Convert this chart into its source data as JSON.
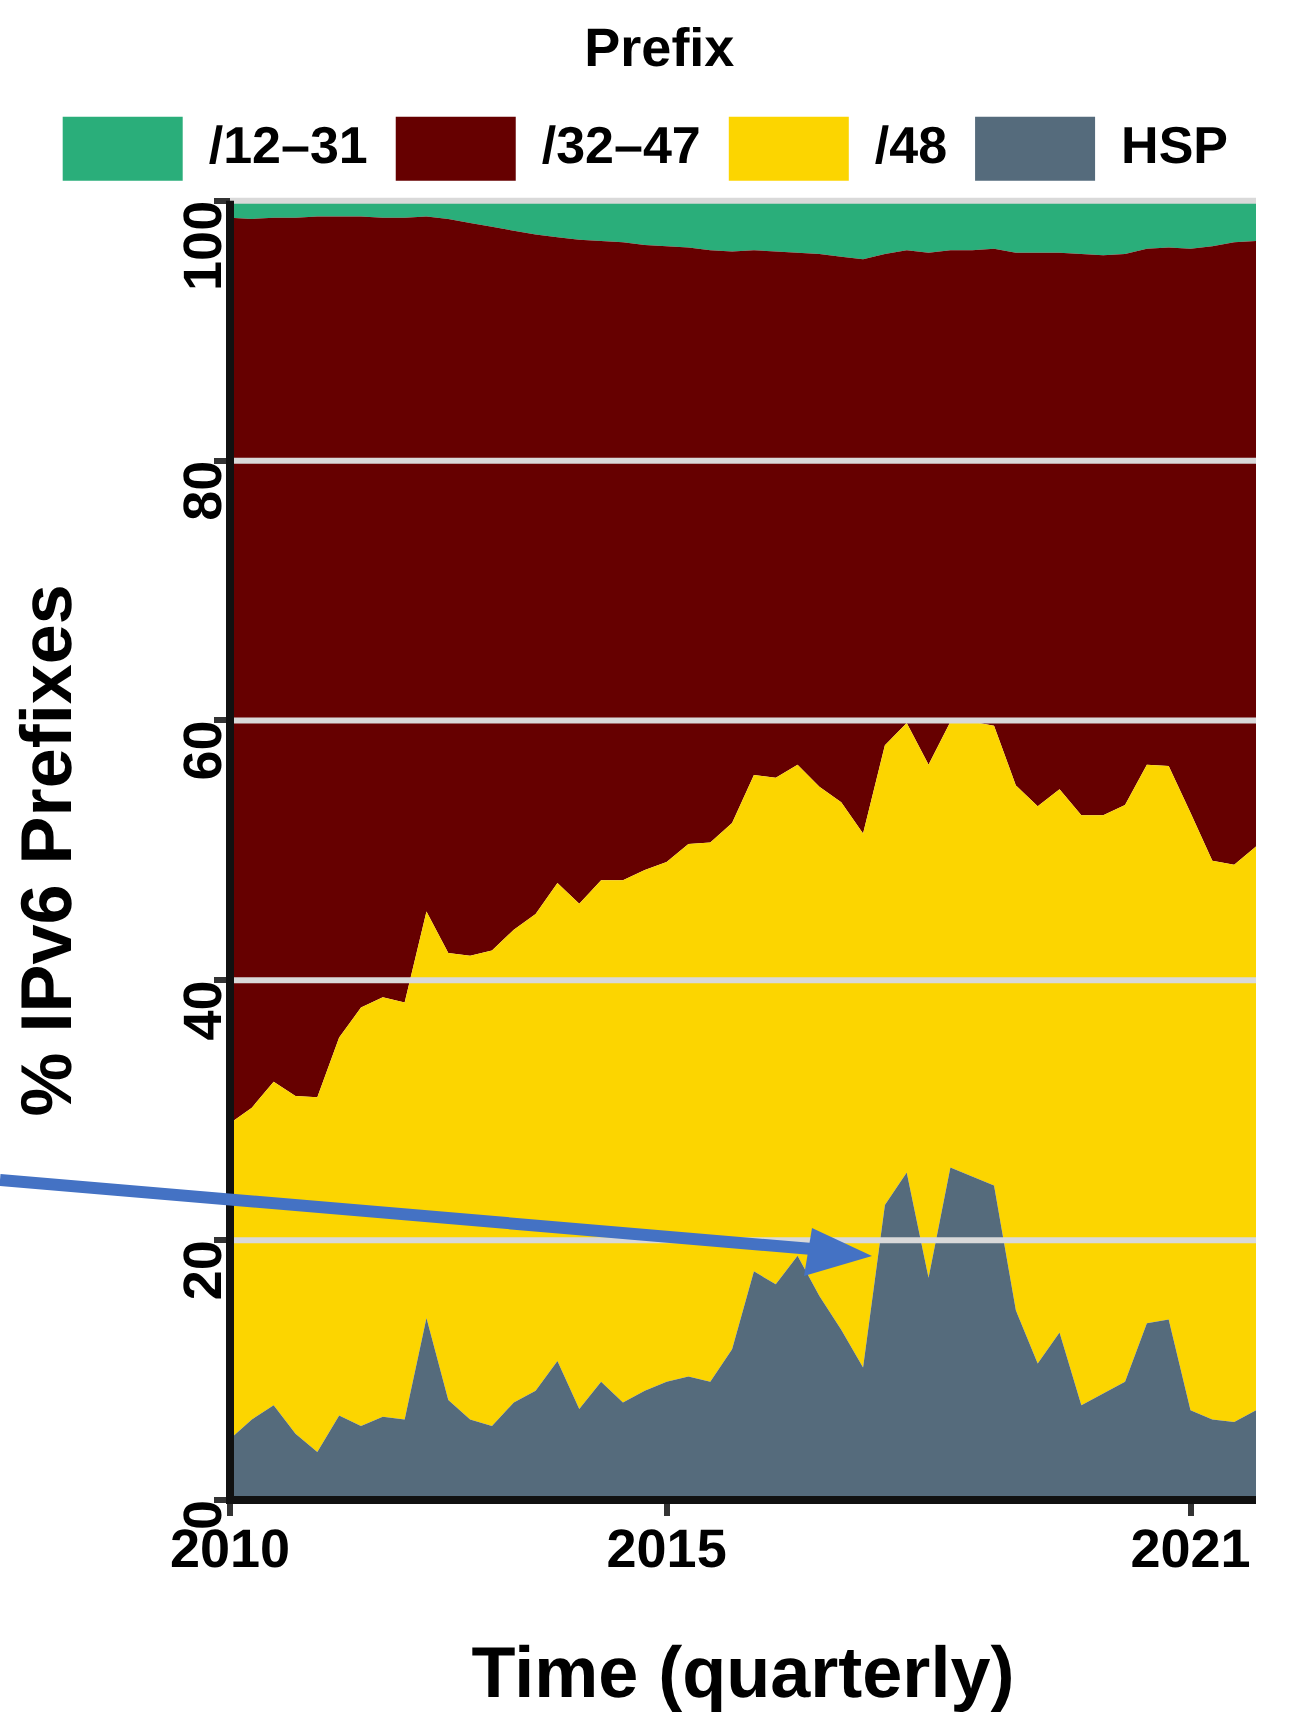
{
  "chart_data": {
    "type": "area",
    "stacked": true,
    "xlabel": "Time (quarterly)",
    "ylabel": "% IPv6 Prefixes",
    "legend_title": "Prefix",
    "legend": "top",
    "x": [
      2010,
      2010.25,
      2010.5,
      2010.75,
      2011,
      2011.25,
      2011.5,
      2011.75,
      2012,
      2012.25,
      2012.5,
      2012.75,
      2013,
      2013.25,
      2013.5,
      2013.75,
      2014,
      2014.25,
      2014.5,
      2014.75,
      2015,
      2015.25,
      2015.5,
      2015.75,
      2016,
      2016.25,
      2016.5,
      2016.75,
      2017,
      2017.25,
      2017.5,
      2017.75,
      2018,
      2018.25,
      2018.5,
      2018.75,
      2019,
      2019.25,
      2019.5,
      2019.75,
      2020,
      2020.25,
      2020.5,
      2020.75,
      2021,
      2021.25,
      2021.5,
      2021.75
    ],
    "series": [
      {
        "name": "HSP",
        "color": "#556b7c",
        "values": [
          4.7,
          6.2,
          7.3,
          5.1,
          3.7,
          6.5,
          5.7,
          6.4,
          6.2,
          14.0,
          7.7,
          6.2,
          5.7,
          7.5,
          8.4,
          10.7,
          7.0,
          9.1,
          7.5,
          8.4,
          9.1,
          9.5,
          9.1,
          11.6,
          17.6,
          16.6,
          18.8,
          15.7,
          13.1,
          10.2,
          22.7,
          25.2,
          17.1,
          25.6,
          24.9,
          24.2,
          14.6,
          10.5,
          12.9,
          7.3,
          8.2,
          9.1,
          13.6,
          13.9,
          6.9,
          6.2,
          6.0,
          6.9
        ]
      },
      {
        "name": "/48",
        "color": "#fcd500",
        "values": [
          24.3,
          24.0,
          24.9,
          26.0,
          27.3,
          29.1,
          32.2,
          32.3,
          32.1,
          31.3,
          34.4,
          35.7,
          36.6,
          36.4,
          36.7,
          36.8,
          38.9,
          38.6,
          40.2,
          40.1,
          40.0,
          41.0,
          41.5,
          40.5,
          38.2,
          39.0,
          37.8,
          39.2,
          40.6,
          41.1,
          35.4,
          34.6,
          39.5,
          34.3,
          35.0,
          35.4,
          40.4,
          42.9,
          41.8,
          45.4,
          44.5,
          44.4,
          43.0,
          42.6,
          46.0,
          43.0,
          42.9,
          43.4
        ]
      },
      {
        "name": "/32–47",
        "color": "#660000",
        "values": [
          69.7,
          68.4,
          66.5,
          67.6,
          67.8,
          63.2,
          60.9,
          60.0,
          60.4,
          53.5,
          56.5,
          56.4,
          55.7,
          53.8,
          52.3,
          49.7,
          51.1,
          49.2,
          49.1,
          48.1,
          47.4,
          45.9,
          45.6,
          44.0,
          40.4,
          40.5,
          39.4,
          41.0,
          42.0,
          44.2,
          37.8,
          36.4,
          39.4,
          36.3,
          36.3,
          36.7,
          41.0,
          42.6,
          41.3,
          43.2,
          43.1,
          42.4,
          39.7,
          39.9,
          43.4,
          47.3,
          47.9,
          46.6
        ]
      },
      {
        "name": "/12–31",
        "color": "#2aae7a",
        "values": [
          1.3,
          1.4,
          1.3,
          1.3,
          1.2,
          1.2,
          1.2,
          1.3,
          1.3,
          1.2,
          1.4,
          1.7,
          2.0,
          2.3,
          2.6,
          2.8,
          3.0,
          3.1,
          3.2,
          3.4,
          3.5,
          3.6,
          3.8,
          3.9,
          3.8,
          3.9,
          4.0,
          4.1,
          4.3,
          4.5,
          4.1,
          3.8,
          4.0,
          3.8,
          3.8,
          3.7,
          4.0,
          4.0,
          4.0,
          4.1,
          4.2,
          4.1,
          3.7,
          3.6,
          3.7,
          3.5,
          3.2,
          3.1
        ]
      }
    ],
    "xlim": [
      2010,
      2021.75
    ],
    "xticks": [
      2010,
      2015,
      2021
    ],
    "ylim": [
      0,
      100
    ],
    "yticks": [
      0,
      20,
      40,
      60,
      80,
      100
    ],
    "grid": "y"
  }
}
